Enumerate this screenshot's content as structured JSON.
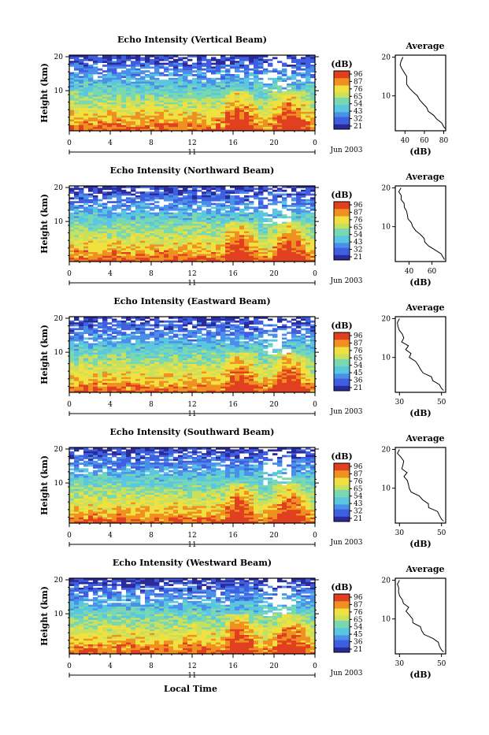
{
  "chart_data": [
    {
      "type": "heatmap",
      "title": "Echo Intensity (Vertical Beam)",
      "ylabel": "Height (km)",
      "x_ticks": [
        "0",
        "4",
        "8",
        "12",
        "16",
        "20",
        "0"
      ],
      "y_ticks": [
        "20",
        "10"
      ],
      "date_label": "11",
      "month_label": "Jun 2003",
      "colorbar": {
        "unit": "(dB)",
        "ticks": [
          "96",
          "87",
          "76",
          "65",
          "54",
          "43",
          "32",
          "21"
        ]
      },
      "profile": {
        "title": "Average",
        "xlabel": "(dB)",
        "x_ticks": [
          "40",
          "60",
          "80"
        ],
        "xlim": [
          30,
          82
        ],
        "y_ticks": [
          "20",
          "10"
        ],
        "values": [
          [
            82,
            1.5
          ],
          [
            80,
            2
          ],
          [
            78,
            3
          ],
          [
            74,
            4
          ],
          [
            69,
            5
          ],
          [
            65,
            6
          ],
          [
            62,
            7
          ],
          [
            58,
            8
          ],
          [
            55,
            9
          ],
          [
            52,
            10
          ],
          [
            48,
            11
          ],
          [
            45,
            12
          ],
          [
            43,
            13
          ],
          [
            42,
            14
          ],
          [
            41,
            15
          ],
          [
            39,
            16
          ],
          [
            38,
            17
          ],
          [
            36,
            18
          ],
          [
            36,
            19
          ],
          [
            38,
            20
          ]
        ]
      }
    },
    {
      "type": "heatmap",
      "title": "Echo Intensity (Northward Beam)",
      "ylabel": "Height (km)",
      "x_ticks": [
        "0",
        "4",
        "8",
        "12",
        "16",
        "20",
        "0"
      ],
      "y_ticks": [
        "20",
        "10"
      ],
      "date_label": "11",
      "month_label": "Jun 2003",
      "colorbar": {
        "unit": "(dB)",
        "ticks": [
          "96",
          "87",
          "76",
          "65",
          "54",
          "43",
          "32",
          "21"
        ]
      },
      "profile": {
        "title": "Average",
        "xlabel": "(dB)",
        "x_ticks": [
          "40",
          "60"
        ],
        "xlim": [
          28,
          72
        ],
        "y_ticks": [
          "20",
          "10"
        ],
        "values": [
          [
            71,
            1.5
          ],
          [
            70,
            2
          ],
          [
            68,
            3
          ],
          [
            63,
            4
          ],
          [
            58,
            5
          ],
          [
            55,
            6
          ],
          [
            52,
            7
          ],
          [
            49,
            8
          ],
          [
            46,
            9
          ],
          [
            44,
            10
          ],
          [
            42,
            11
          ],
          [
            40,
            12
          ],
          [
            39,
            13
          ],
          [
            37,
            14
          ],
          [
            36,
            15
          ],
          [
            35,
            16
          ],
          [
            33,
            17
          ],
          [
            32,
            18
          ],
          [
            31,
            19
          ],
          [
            33,
            20
          ]
        ]
      }
    },
    {
      "type": "heatmap",
      "title": "Echo Intensity (Eastward Beam)",
      "ylabel": "Height (km)",
      "x_ticks": [
        "0",
        "4",
        "8",
        "12",
        "16",
        "20",
        "0"
      ],
      "y_ticks": [
        "20",
        "10"
      ],
      "date_label": "11",
      "month_label": "Jun 2003",
      "colorbar": {
        "unit": "(dB)",
        "ticks": [
          "96",
          "87",
          "76",
          "65",
          "54",
          "45",
          "36",
          "21"
        ]
      },
      "profile": {
        "title": "Average",
        "xlabel": "(dB)",
        "x_ticks": [
          "30",
          "50"
        ],
        "xlim": [
          28,
          52
        ],
        "y_ticks": [
          "20",
          "10"
        ],
        "values": [
          [
            51,
            1.5
          ],
          [
            50,
            2
          ],
          [
            49,
            3
          ],
          [
            47,
            4
          ],
          [
            44,
            5
          ],
          [
            42,
            6
          ],
          [
            40,
            7
          ],
          [
            39,
            8
          ],
          [
            37,
            9
          ],
          [
            36,
            10
          ],
          [
            35,
            11
          ],
          [
            34,
            12
          ],
          [
            33,
            13
          ],
          [
            32,
            14
          ],
          [
            31,
            15
          ],
          [
            31,
            16
          ],
          [
            30,
            17
          ],
          [
            30,
            18
          ],
          [
            29,
            19
          ],
          [
            30,
            20
          ]
        ]
      }
    },
    {
      "type": "heatmap",
      "title": "Echo Intensity (Southward Beam)",
      "ylabel": "Height (km)",
      "x_ticks": [
        "0",
        "4",
        "8",
        "12",
        "16",
        "20",
        "0"
      ],
      "y_ticks": [
        "20",
        "10"
      ],
      "date_label": "11",
      "month_label": "Jun 2003",
      "colorbar": {
        "unit": "(dB)",
        "ticks": [
          "96",
          "87",
          "76",
          "65",
          "54",
          "43",
          "32",
          "21"
        ]
      },
      "profile": {
        "title": "Average",
        "xlabel": "(dB)",
        "x_ticks": [
          "30",
          "50"
        ],
        "xlim": [
          28,
          52
        ],
        "y_ticks": [
          "20",
          "10"
        ],
        "values": [
          [
            51,
            1.5
          ],
          [
            50,
            2
          ],
          [
            49,
            3
          ],
          [
            47,
            4
          ],
          [
            45,
            5
          ],
          [
            43,
            6
          ],
          [
            41,
            7
          ],
          [
            39,
            8
          ],
          [
            37,
            9
          ],
          [
            36,
            10
          ],
          [
            35,
            11
          ],
          [
            34,
            12
          ],
          [
            33,
            13
          ],
          [
            33,
            14
          ],
          [
            32,
            15
          ],
          [
            31,
            16
          ],
          [
            31,
            17
          ],
          [
            30,
            18
          ],
          [
            29,
            19
          ],
          [
            30,
            20
          ]
        ]
      }
    },
    {
      "type": "heatmap",
      "title": "Echo Intensity (Westward Beam)",
      "ylabel": "Height (km)",
      "x_ticks": [
        "0",
        "4",
        "8",
        "12",
        "16",
        "20",
        "0"
      ],
      "y_ticks": [
        "20",
        "10"
      ],
      "date_label": "11",
      "month_label": "Jun 2003",
      "colorbar": {
        "unit": "(dB)",
        "ticks": [
          "96",
          "87",
          "76",
          "65",
          "54",
          "45",
          "36",
          "21"
        ]
      },
      "profile": {
        "title": "Average",
        "xlabel": "(dB)",
        "x_ticks": [
          "30",
          "50"
        ],
        "xlim": [
          28,
          52
        ],
        "y_ticks": [
          "20",
          "10"
        ],
        "values": [
          [
            51,
            1.5
          ],
          [
            50,
            2
          ],
          [
            49,
            3
          ],
          [
            47,
            4
          ],
          [
            45,
            5
          ],
          [
            42,
            6
          ],
          [
            40,
            7
          ],
          [
            39,
            8
          ],
          [
            37,
            9
          ],
          [
            36,
            10
          ],
          [
            35,
            11
          ],
          [
            34,
            12
          ],
          [
            33,
            13
          ],
          [
            32,
            14
          ],
          [
            32,
            15
          ],
          [
            31,
            16
          ],
          [
            30,
            17
          ],
          [
            30,
            18
          ],
          [
            29,
            19
          ],
          [
            30,
            20
          ]
        ]
      }
    }
  ],
  "common": {
    "xlabel": "Local Time",
    "colormap": [
      "#2a2a9a",
      "#3f5fe0",
      "#4a90e8",
      "#5ac6e0",
      "#7ad8b0",
      "#c8e060",
      "#f0e040",
      "#f09020",
      "#e04020"
    ]
  }
}
